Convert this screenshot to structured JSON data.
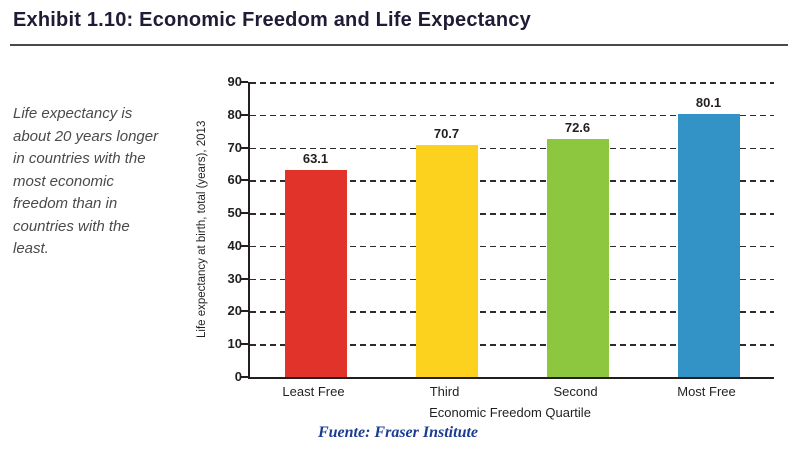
{
  "title": "Exhibit 1.10: Economic Freedom and Life Expectancy",
  "caption": "Life expectancy is about 20 years longer in countries with the most economic freedom than in countries with the least.",
  "source": "Fuente: Fraser Institute",
  "chart_data": {
    "type": "bar",
    "categories": [
      "Least Free",
      "Third",
      "Second",
      "Most Free"
    ],
    "values": [
      63.1,
      70.7,
      72.6,
      80.1
    ],
    "bar_colors": [
      "#e2332a",
      "#fdd21e",
      "#8dc63f",
      "#3392c6"
    ],
    "title": "",
    "xlabel": "Economic Freedom Quartile",
    "ylabel": "Life expectancy at birth, total (years), 2013",
    "ylim": [
      0,
      90
    ],
    "ytick_step": 10,
    "grid": "dashed horizontal",
    "legend": "none",
    "value_labels": true
  }
}
